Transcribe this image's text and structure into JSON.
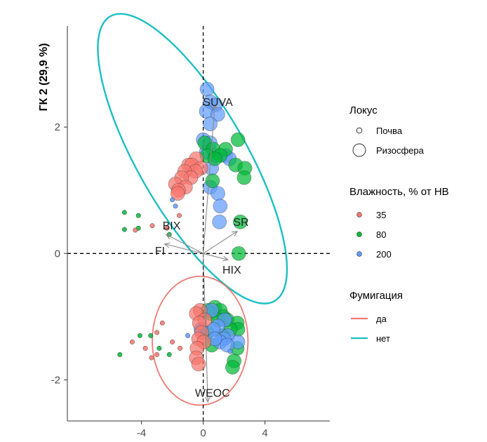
{
  "chart_data": {
    "type": "scatter",
    "title": "",
    "xlabel": "",
    "ylabel": "ГК 2 (29,9 %)",
    "xlim": [
      -8.8,
      8.2
    ],
    "ylim": [
      -2.65,
      3.6
    ],
    "xticks": [
      -4,
      0,
      4
    ],
    "yticks": [
      -2,
      0,
      2
    ],
    "tick_labels": {
      "x": [
        "-4",
        "0",
        "4"
      ],
      "y": [
        "-2",
        "0",
        "2"
      ]
    },
    "loadings": [
      {
        "name": "SUVA",
        "x": 0.75,
        "y": 2.35,
        "lx": 0.95,
        "ly": 2.4
      },
      {
        "name": "SR",
        "x": 2.2,
        "y": 0.35,
        "lx": 2.45,
        "ly": 0.5
      },
      {
        "name": "BIX",
        "x": -2.4,
        "y": 0.3,
        "lx": -2.05,
        "ly": 0.45
      },
      {
        "name": "FI",
        "x": -2.5,
        "y": 0.15,
        "lx": -2.8,
        "ly": 0.05
      },
      {
        "name": "HIX",
        "x": 1.6,
        "y": -0.1,
        "lx": 1.85,
        "ly": -0.25
      },
      {
        "name": "WEOC",
        "x": 0.3,
        "y": -2.35,
        "lx": 0.6,
        "ly": -2.2
      }
    ],
    "ellipses": [
      {
        "group": "нет",
        "cx": -0.7,
        "cy": 1.5,
        "rx": 7.0,
        "ry": 2.6,
        "angle": 30
      },
      {
        "group": "да",
        "cx": -0.2,
        "cy": -1.38,
        "rx": 6.2,
        "ry": 1.02,
        "angle": 0
      }
    ],
    "points": [
      {
        "x": 0.25,
        "y": 2.6,
        "size": "rhizo",
        "moisture": "200"
      },
      {
        "x": 0.45,
        "y": 2.4,
        "size": "rhizo",
        "moisture": "200"
      },
      {
        "x": 0.8,
        "y": 2.35,
        "size": "rhizo",
        "moisture": "200"
      },
      {
        "x": 0.2,
        "y": 2.25,
        "size": "rhizo",
        "moisture": "200"
      },
      {
        "x": 0.95,
        "y": 2.2,
        "size": "rhizo",
        "moisture": "200"
      },
      {
        "x": 0.45,
        "y": 2.05,
        "size": "rhizo",
        "moisture": "200"
      },
      {
        "x": 0.0,
        "y": 1.8,
        "size": "rhizo",
        "moisture": "200"
      },
      {
        "x": 0.45,
        "y": 1.75,
        "size": "rhizo",
        "moisture": "200"
      },
      {
        "x": 0.2,
        "y": 1.6,
        "size": "rhizo",
        "moisture": "200"
      },
      {
        "x": 0.8,
        "y": 1.55,
        "size": "rhizo",
        "moisture": "200"
      },
      {
        "x": 1.45,
        "y": 1.55,
        "size": "rhizo",
        "moisture": "200"
      },
      {
        "x": 1.7,
        "y": 1.5,
        "size": "rhizo",
        "moisture": "200"
      },
      {
        "x": 0.55,
        "y": 1.35,
        "size": "rhizo",
        "moisture": "200"
      },
      {
        "x": 0.45,
        "y": 1.05,
        "size": "rhizo",
        "moisture": "200"
      },
      {
        "x": 0.95,
        "y": 0.95,
        "size": "rhizo",
        "moisture": "200"
      },
      {
        "x": 1.1,
        "y": 0.75,
        "size": "rhizo",
        "moisture": "200"
      },
      {
        "x": 1.05,
        "y": 0.5,
        "size": "rhizo",
        "moisture": "200"
      },
      {
        "x": 2.25,
        "y": 1.8,
        "size": "rhizo",
        "moisture": "80"
      },
      {
        "x": 0.1,
        "y": 1.75,
        "size": "rhizo",
        "moisture": "80"
      },
      {
        "x": 0.65,
        "y": 1.65,
        "size": "rhizo",
        "moisture": "80"
      },
      {
        "x": 1.45,
        "y": 1.65,
        "size": "rhizo",
        "moisture": "80"
      },
      {
        "x": 1.1,
        "y": 1.55,
        "size": "rhizo",
        "moisture": "80"
      },
      {
        "x": 0.25,
        "y": 1.55,
        "size": "rhizo",
        "moisture": "80"
      },
      {
        "x": 0.75,
        "y": 1.5,
        "size": "rhizo",
        "moisture": "80"
      },
      {
        "x": 2.1,
        "y": 1.4,
        "size": "rhizo",
        "moisture": "80"
      },
      {
        "x": 2.7,
        "y": 1.35,
        "size": "rhizo",
        "moisture": "80"
      },
      {
        "x": 2.65,
        "y": 1.2,
        "size": "rhizo",
        "moisture": "80"
      },
      {
        "x": 0.6,
        "y": 1.15,
        "size": "rhizo",
        "moisture": "80"
      },
      {
        "x": 2.4,
        "y": 0.5,
        "size": "rhizo",
        "moisture": "80"
      },
      {
        "x": 2.3,
        "y": 0.0,
        "size": "rhizo",
        "moisture": "80"
      },
      {
        "x": -0.45,
        "y": 1.5,
        "size": "rhizo",
        "moisture": "35"
      },
      {
        "x": -0.95,
        "y": 1.4,
        "size": "rhizo",
        "moisture": "35"
      },
      {
        "x": -0.75,
        "y": 1.4,
        "size": "rhizo",
        "moisture": "35"
      },
      {
        "x": -0.15,
        "y": 1.35,
        "size": "rhizo",
        "moisture": "35"
      },
      {
        "x": -0.5,
        "y": 1.3,
        "size": "rhizo",
        "moisture": "35"
      },
      {
        "x": -1.2,
        "y": 1.3,
        "size": "rhizo",
        "moisture": "35"
      },
      {
        "x": -0.8,
        "y": 1.2,
        "size": "rhizo",
        "moisture": "35"
      },
      {
        "x": -1.4,
        "y": 1.2,
        "size": "rhizo",
        "moisture": "35"
      },
      {
        "x": -1.8,
        "y": 1.1,
        "size": "rhizo",
        "moisture": "35"
      },
      {
        "x": -1.15,
        "y": 1.05,
        "size": "rhizo",
        "moisture": "35"
      },
      {
        "x": -1.6,
        "y": 1.0,
        "size": "rhizo",
        "moisture": "35"
      },
      {
        "x": -1.65,
        "y": 0.95,
        "size": "rhizo",
        "moisture": "35"
      },
      {
        "x": -2.0,
        "y": 0.85,
        "size": "small",
        "moisture": "200"
      },
      {
        "x": -1.8,
        "y": 0.75,
        "size": "small",
        "moisture": "200"
      },
      {
        "x": -1.55,
        "y": 0.6,
        "size": "small",
        "moisture": "35"
      },
      {
        "x": -5.1,
        "y": 0.65,
        "size": "small",
        "moisture": "80"
      },
      {
        "x": -4.2,
        "y": 0.6,
        "size": "small",
        "moisture": "80"
      },
      {
        "x": -5.1,
        "y": 0.38,
        "size": "small",
        "moisture": "80"
      },
      {
        "x": -4.2,
        "y": 0.4,
        "size": "small",
        "moisture": "80"
      },
      {
        "x": -4.4,
        "y": 0.37,
        "size": "small",
        "moisture": "35"
      },
      {
        "x": -3.3,
        "y": 0.44,
        "size": "small",
        "moisture": "35"
      },
      {
        "x": -2.2,
        "y": 0.3,
        "size": "small",
        "moisture": "80"
      },
      {
        "x": -2.35,
        "y": 0.4,
        "size": "small",
        "moisture": "35"
      },
      {
        "x": 0.3,
        "y": -0.9,
        "size": "rhizo",
        "moisture": "80"
      },
      {
        "x": 0.75,
        "y": -0.85,
        "size": "rhizo",
        "moisture": "80"
      },
      {
        "x": 1.1,
        "y": -0.9,
        "size": "rhizo",
        "moisture": "80"
      },
      {
        "x": 0.45,
        "y": -0.95,
        "size": "rhizo",
        "moisture": "80"
      },
      {
        "x": 1.3,
        "y": -1.0,
        "size": "rhizo",
        "moisture": "80"
      },
      {
        "x": 1.55,
        "y": -1.05,
        "size": "rhizo",
        "moisture": "80"
      },
      {
        "x": 0.95,
        "y": -1.05,
        "size": "rhizo",
        "moisture": "80"
      },
      {
        "x": 2.2,
        "y": -1.1,
        "size": "rhizo",
        "moisture": "80"
      },
      {
        "x": 2.25,
        "y": -1.2,
        "size": "rhizo",
        "moisture": "80"
      },
      {
        "x": 1.75,
        "y": -1.2,
        "size": "rhizo",
        "moisture": "80"
      },
      {
        "x": 0.25,
        "y": -1.25,
        "size": "rhizo",
        "moisture": "80"
      },
      {
        "x": 1.25,
        "y": -1.3,
        "size": "rhizo",
        "moisture": "80"
      },
      {
        "x": 0.55,
        "y": -1.45,
        "size": "rhizo",
        "moisture": "80"
      },
      {
        "x": 2.2,
        "y": -1.5,
        "size": "rhizo",
        "moisture": "80"
      },
      {
        "x": 2.0,
        "y": -1.7,
        "size": "rhizo",
        "moisture": "80"
      },
      {
        "x": 1.9,
        "y": -1.8,
        "size": "rhizo",
        "moisture": "80"
      },
      {
        "x": 0.55,
        "y": -0.9,
        "size": "rhizo",
        "moisture": "200"
      },
      {
        "x": 1.4,
        "y": -1.05,
        "size": "rhizo",
        "moisture": "200"
      },
      {
        "x": 0.95,
        "y": -1.15,
        "size": "rhizo",
        "moisture": "200"
      },
      {
        "x": 0.65,
        "y": -1.2,
        "size": "rhizo",
        "moisture": "200"
      },
      {
        "x": 1.6,
        "y": -1.3,
        "size": "rhizo",
        "moisture": "200"
      },
      {
        "x": 1.35,
        "y": -1.35,
        "size": "rhizo",
        "moisture": "200"
      },
      {
        "x": 1.1,
        "y": -1.4,
        "size": "rhizo",
        "moisture": "200"
      },
      {
        "x": 0.75,
        "y": -1.35,
        "size": "rhizo",
        "moisture": "200"
      },
      {
        "x": 2.25,
        "y": -1.4,
        "size": "rhizo",
        "moisture": "200"
      },
      {
        "x": 1.55,
        "y": -1.45,
        "size": "rhizo",
        "moisture": "200"
      },
      {
        "x": -0.15,
        "y": -1.2,
        "size": "rhizo",
        "moisture": "200"
      },
      {
        "x": -0.2,
        "y": -0.9,
        "size": "rhizo",
        "moisture": "35"
      },
      {
        "x": -0.45,
        "y": -0.95,
        "size": "rhizo",
        "moisture": "35"
      },
      {
        "x": 0.1,
        "y": -1.05,
        "size": "rhizo",
        "moisture": "35"
      },
      {
        "x": -0.25,
        "y": -1.1,
        "size": "rhizo",
        "moisture": "35"
      },
      {
        "x": -0.1,
        "y": -1.25,
        "size": "rhizo",
        "moisture": "35"
      },
      {
        "x": -0.3,
        "y": -1.35,
        "size": "rhizo",
        "moisture": "35"
      },
      {
        "x": 0.05,
        "y": -1.4,
        "size": "rhizo",
        "moisture": "35"
      },
      {
        "x": -0.4,
        "y": -1.5,
        "size": "rhizo",
        "moisture": "35"
      },
      {
        "x": -0.45,
        "y": -1.65,
        "size": "rhizo",
        "moisture": "35"
      },
      {
        "x": -0.3,
        "y": -1.75,
        "size": "rhizo",
        "moisture": "35"
      },
      {
        "x": -2.65,
        "y": -1.1,
        "size": "small",
        "moisture": "35"
      },
      {
        "x": -3.0,
        "y": -1.25,
        "size": "small",
        "moisture": "35"
      },
      {
        "x": -4.1,
        "y": -1.3,
        "size": "small",
        "moisture": "80"
      },
      {
        "x": -3.4,
        "y": -1.3,
        "size": "small",
        "moisture": "80"
      },
      {
        "x": -4.6,
        "y": -1.4,
        "size": "small",
        "moisture": "35"
      },
      {
        "x": -2.0,
        "y": -1.4,
        "size": "small",
        "moisture": "35"
      },
      {
        "x": -2.85,
        "y": -1.5,
        "size": "small",
        "moisture": "80"
      },
      {
        "x": -3.75,
        "y": -1.5,
        "size": "small",
        "moisture": "35"
      },
      {
        "x": -3.0,
        "y": -1.6,
        "size": "small",
        "moisture": "35"
      },
      {
        "x": -5.4,
        "y": -1.6,
        "size": "small",
        "moisture": "80"
      },
      {
        "x": -2.2,
        "y": -1.6,
        "size": "small",
        "moisture": "80"
      },
      {
        "x": -3.35,
        "y": -1.65,
        "size": "small",
        "moisture": "35"
      },
      {
        "x": -1.0,
        "y": -1.3,
        "size": "small",
        "moisture": "200"
      },
      {
        "x": 1.75,
        "y": -1.55,
        "size": "small",
        "moisture": "200"
      },
      {
        "x": -1.5,
        "y": -1.5,
        "size": "small",
        "moisture": "35"
      }
    ],
    "legend": {
      "position": "right",
      "locus": {
        "title": "Локус",
        "items": [
          "Почва",
          "Ризосфера"
        ]
      },
      "moisture": {
        "title": "Влажность, % от НВ",
        "items": [
          "35",
          "80",
          "200"
        ]
      },
      "fumigation": {
        "title": "Фумигация",
        "items": [
          "да",
          "нет"
        ]
      }
    },
    "colors": {
      "moisture_35": "#F8766D",
      "moisture_80": "#00BA38",
      "moisture_200": "#619CFF",
      "ellipse_yes": "#EE7B74",
      "ellipse_no": "#1BBFC3",
      "arrow": "#8a8a8a"
    }
  }
}
